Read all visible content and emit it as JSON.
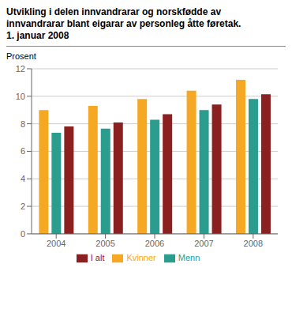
{
  "chart_data": {
    "type": "bar",
    "title": "Utvikling i delen innvandrarar og norskfødde av\ninnvandrarar blant eigarar av personleg åtte føretak.\n1. januar 2008",
    "y_label": "Prosent",
    "categories": [
      2004,
      2005,
      2006,
      2007,
      2008
    ],
    "series": [
      {
        "name": "Kvinner",
        "color": "#F5A823",
        "values": [
          9.0,
          9.3,
          9.8,
          10.4,
          11.2
        ]
      },
      {
        "name": "Menn",
        "color": "#2A9D8F",
        "values": [
          7.35,
          7.65,
          8.3,
          9.0,
          9.8
        ]
      },
      {
        "name": "I alt",
        "color": "#8B2020",
        "values": [
          7.8,
          8.1,
          8.7,
          9.4,
          10.15
        ]
      }
    ],
    "ylim": [
      0,
      12
    ],
    "yticks": [
      0,
      2,
      4,
      6,
      8,
      10,
      12
    ],
    "grid": true,
    "legend": "bottom"
  }
}
